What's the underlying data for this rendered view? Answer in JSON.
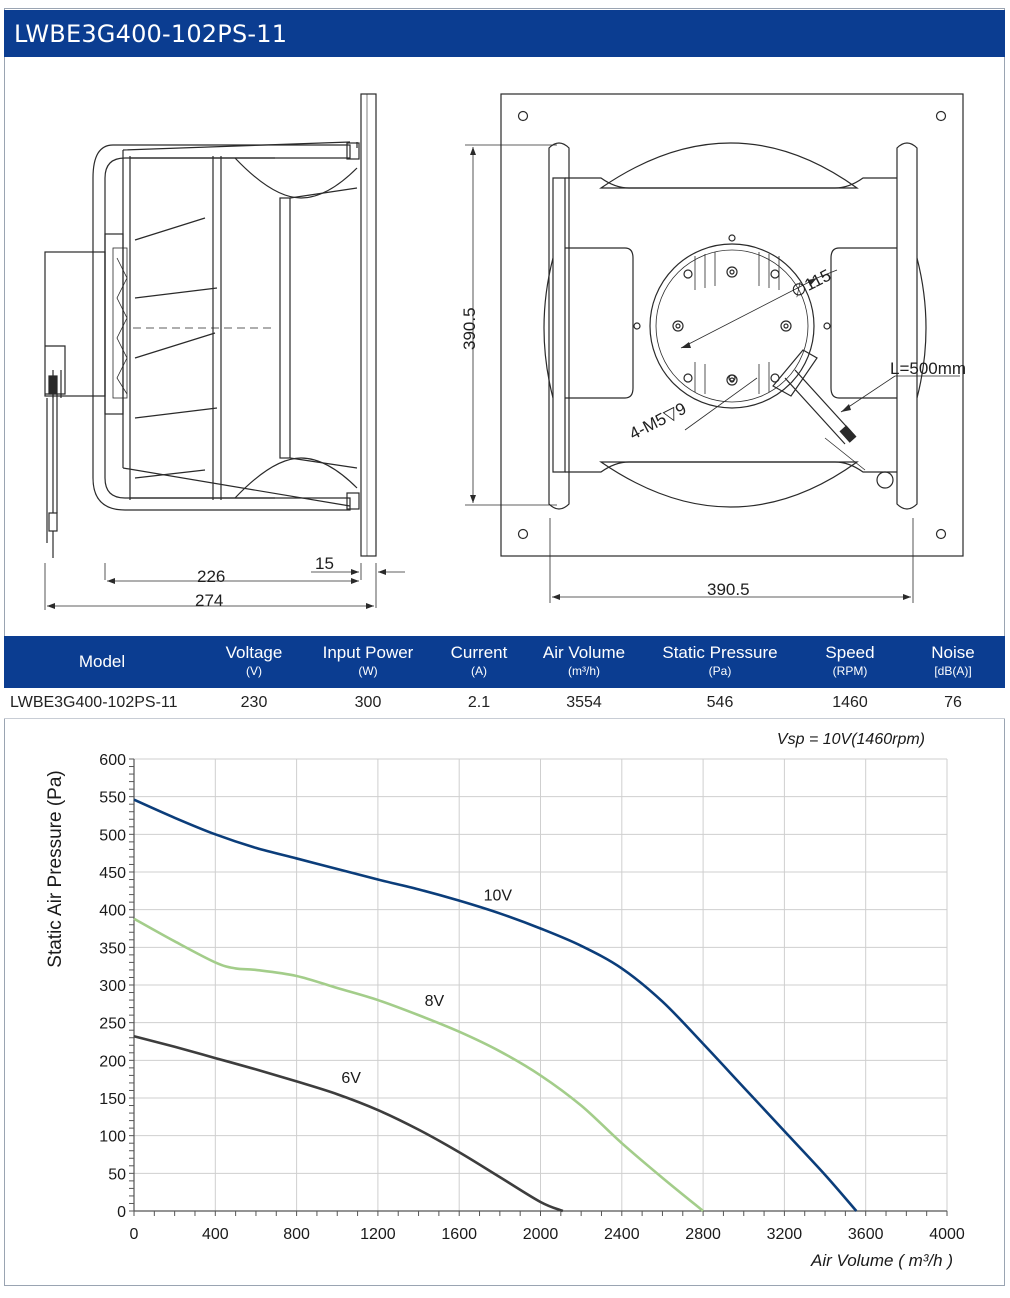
{
  "header": {
    "title": "LWBE3G400-102PS-11"
  },
  "drawing": {
    "side_view": {
      "dim_226": "226",
      "dim_15": "15",
      "dim_274": "274"
    },
    "front_view": {
      "dim_height": "390.5",
      "dim_width": "390.5",
      "diameter": "∅115",
      "holes": "4-M5▽9",
      "cable": "L=500mm"
    }
  },
  "spec_table": {
    "columns": [
      {
        "label": "Model",
        "unit": ""
      },
      {
        "label": "Voltage",
        "unit": "(V)"
      },
      {
        "label": "Input Power",
        "unit": "(W)"
      },
      {
        "label": "Current",
        "unit": "(A)"
      },
      {
        "label": "Air Volume",
        "unit": "(m³/h)"
      },
      {
        "label": "Static Pressure",
        "unit": "(Pa)"
      },
      {
        "label": "Speed",
        "unit": "(RPM)"
      },
      {
        "label": "Noise",
        "unit": "[dB(A)]"
      }
    ],
    "row": [
      "LWBE3G400-102PS-11",
      "230",
      "300",
      "2.1",
      "3554",
      "546",
      "1460",
      "76"
    ]
  },
  "chart_data": {
    "type": "line",
    "title": "",
    "annotation": "Vsp = 10V(1460rpm)",
    "xlabel": "Air Volume ( m³/h )",
    "ylabel": "Static Air Pressure  (Pa)",
    "xlim": [
      0,
      4000
    ],
    "ylim": [
      0,
      600
    ],
    "xticks": [
      0,
      400,
      800,
      1200,
      1600,
      2000,
      2400,
      2800,
      3200,
      3600,
      4000
    ],
    "yticks": [
      0,
      50,
      100,
      150,
      200,
      250,
      300,
      350,
      400,
      450,
      500,
      550,
      600
    ],
    "grid": true,
    "legend": "inline labels",
    "series": [
      {
        "name": "10V",
        "color": "#0b3d7a",
        "label_at": [
          1720,
          412
        ],
        "x": [
          0,
          200,
          400,
          600,
          800,
          1000,
          1200,
          1400,
          1600,
          1800,
          2000,
          2200,
          2400,
          2600,
          2800,
          3000,
          3200,
          3400,
          3554
        ],
        "y": [
          546,
          522,
          500,
          482,
          468,
          454,
          440,
          427,
          412,
          395,
          375,
          352,
          322,
          278,
          222,
          164,
          106,
          48,
          0
        ]
      },
      {
        "name": "8V",
        "color": "#a3cd8a",
        "label_at": [
          1430,
          272
        ],
        "x": [
          0,
          200,
          400,
          500,
          600,
          800,
          1000,
          1200,
          1400,
          1600,
          1800,
          2000,
          2200,
          2400,
          2600,
          2800
        ],
        "y": [
          388,
          358,
          330,
          322,
          320,
          312,
          296,
          280,
          260,
          238,
          212,
          180,
          140,
          90,
          44,
          0
        ]
      },
      {
        "name": "6V",
        "color": "#3d3d3d",
        "label_at": [
          1020,
          170
        ],
        "x": [
          0,
          200,
          400,
          600,
          800,
          1000,
          1200,
          1400,
          1600,
          1800,
          2000,
          2110
        ],
        "y": [
          232,
          218,
          203,
          188,
          172,
          155,
          134,
          108,
          78,
          45,
          12,
          0
        ]
      }
    ]
  }
}
